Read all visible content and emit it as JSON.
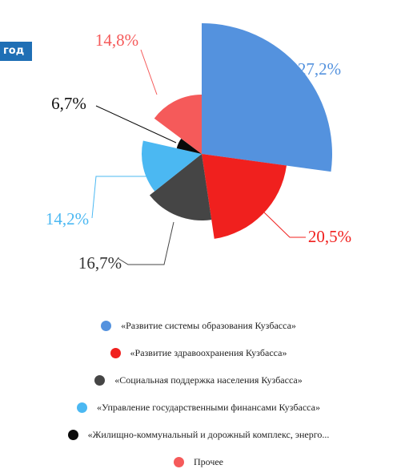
{
  "badge": {
    "text": "год"
  },
  "chart_data": {
    "type": "pie",
    "variant": "variable-radius",
    "slices": [
      {
        "label": "«Развитие системы образования Кузбасса»",
        "value": 27.2,
        "value_label": "27,2%",
        "color": "#5492DE"
      },
      {
        "label": "«Развитие здравоохранения Кузбасса»",
        "value": 20.5,
        "value_label": "20,5%",
        "color": "#F0201E"
      },
      {
        "label": "«Социальная поддержка населения Кузбасса»",
        "value": 16.7,
        "value_label": "16,7%",
        "color": "#454545"
      },
      {
        "label": "«Управление государственными финансами Кузбасса»",
        "value": 14.2,
        "value_label": "14,2%",
        "color": "#4BB8F2"
      },
      {
        "label": "«Жилищно-коммунальный и дорожный комплекс, энерго...",
        "value": 6.7,
        "value_label": "6,7%",
        "color": "#0a0a0a"
      },
      {
        "label": "Прочее",
        "value": 14.8,
        "value_label": "14,8%",
        "color": "#F55A5A"
      }
    ],
    "legend_position": "bottom"
  }
}
